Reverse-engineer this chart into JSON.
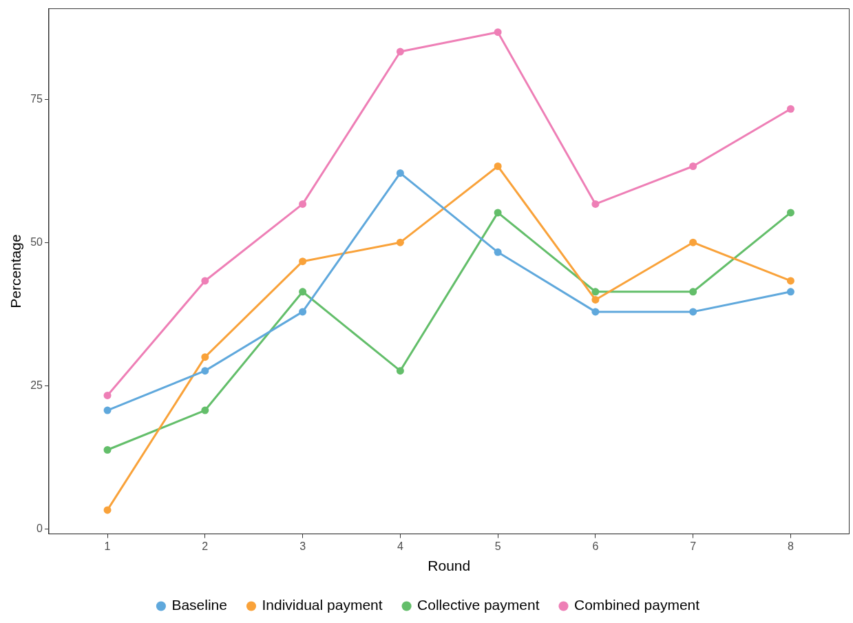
{
  "chart_data": {
    "type": "line",
    "xlabel": "Round",
    "ylabel": "Percentage",
    "x": [
      1,
      2,
      3,
      4,
      5,
      6,
      7,
      8
    ],
    "xlim": [
      0.4,
      8.6
    ],
    "xticks": [
      1,
      2,
      3,
      4,
      5,
      6,
      7,
      8
    ],
    "ylim": [
      -0.87,
      90.8
    ],
    "yticks": [
      0,
      25,
      50,
      75
    ],
    "series": [
      {
        "name": "Baseline",
        "color": "#5fa8dc",
        "values": [
          20.7,
          27.6,
          37.9,
          62.1,
          48.3,
          37.9,
          37.9,
          41.4
        ]
      },
      {
        "name": "Individual payment",
        "color": "#f9a23a",
        "values": [
          3.3,
          30.0,
          46.7,
          50.0,
          63.3,
          40.0,
          50.0,
          43.3
        ]
      },
      {
        "name": "Collective payment",
        "color": "#63be6a",
        "values": [
          13.8,
          20.7,
          41.4,
          27.6,
          55.2,
          41.4,
          41.4,
          55.2
        ]
      },
      {
        "name": "Combined payment",
        "color": "#ee7fb6",
        "values": [
          23.3,
          43.3,
          56.7,
          83.3,
          86.7,
          56.7,
          63.3,
          73.3
        ]
      }
    ],
    "grid": false,
    "legend": "bottom",
    "marker": "circle",
    "line_style": "solid"
  }
}
